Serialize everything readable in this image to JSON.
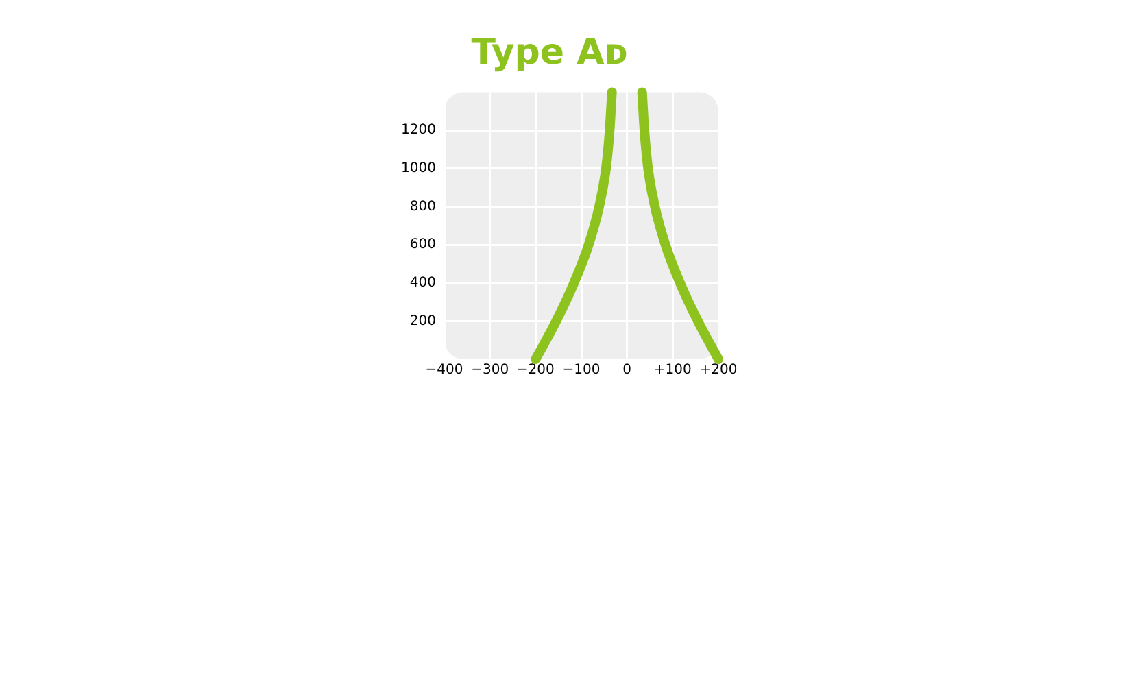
{
  "chart_data": {
    "type": "line",
    "title": "Type Aᴅ",
    "series": [
      {
        "color": "#8dc21f",
        "x": [
          -200,
          -155,
          -116,
          -84,
          -61,
          -46,
          -38,
          -33
        ],
        "values": [
          0,
          200,
          400,
          600,
          800,
          1000,
          1200,
          1400
        ]
      },
      {
        "color": "#8dc21f",
        "x": [
          33,
          38,
          46,
          61,
          84,
          116,
          155,
          200
        ],
        "values": [
          1400,
          1200,
          1000,
          800,
          600,
          400,
          200,
          0
        ]
      }
    ],
    "xlim": [
      -400,
      200
    ],
    "xticks": [
      {
        "value": -400,
        "label": "−400"
      },
      {
        "value": -300,
        "label": "−300"
      },
      {
        "value": -200,
        "label": "−200"
      },
      {
        "value": -100,
        "label": "−100"
      },
      0,
      {
        "value": 100,
        "label": "+100"
      },
      {
        "value": 200,
        "label": "+200"
      }
    ],
    "ylim": [
      0,
      1400
    ],
    "yticks": [
      200,
      400,
      600,
      800,
      1000,
      1200
    ],
    "grid": true,
    "marker": "none",
    "line_style": "solid",
    "legend": false
  }
}
